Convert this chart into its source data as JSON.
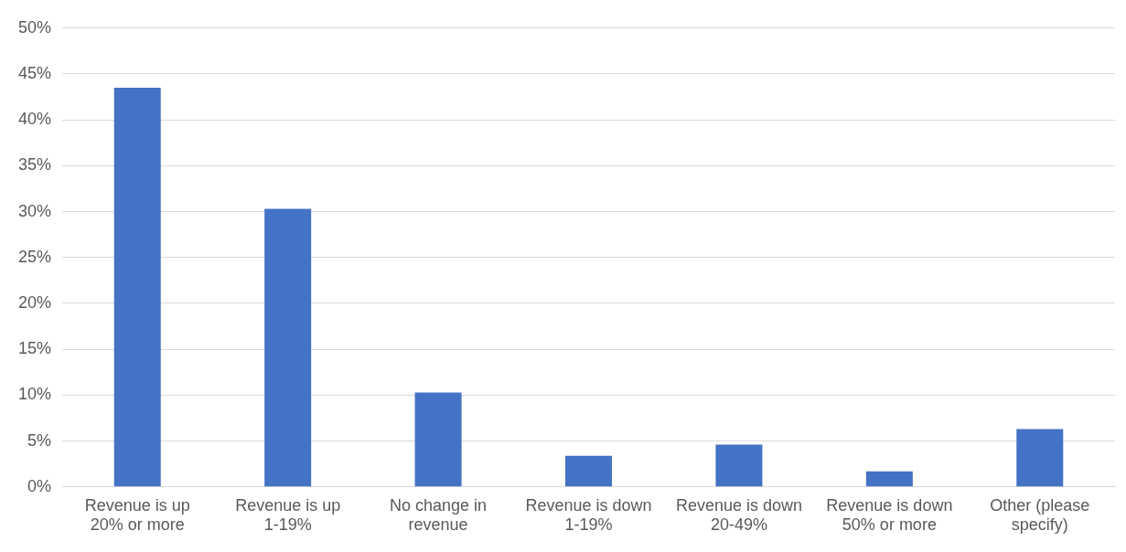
{
  "chart_data": {
    "type": "bar",
    "categories": [
      "Revenue is up 20% or more",
      "Revenue is up 1-19%",
      "No change in revenue",
      "Revenue is down 1-19%",
      "Revenue is down 20-49%",
      "Revenue is down 50% or more",
      "Other (please specify)"
    ],
    "values": [
      43.5,
      30.3,
      10.3,
      3.4,
      4.6,
      1.7,
      6.3
    ],
    "color": "#4472c4",
    "ylim": [
      0,
      50
    ],
    "yticks": [
      {
        "value": 0,
        "label": "0%"
      },
      {
        "value": 5,
        "label": "5%"
      },
      {
        "value": 10,
        "label": "10%"
      },
      {
        "value": 15,
        "label": "15%"
      },
      {
        "value": 20,
        "label": "20%"
      },
      {
        "value": 25,
        "label": "25%"
      },
      {
        "value": 30,
        "label": "30%"
      },
      {
        "value": 35,
        "label": "35%"
      },
      {
        "value": 40,
        "label": "40%"
      },
      {
        "value": 45,
        "label": "45%"
      },
      {
        "value": 50,
        "label": "50%"
      }
    ],
    "grid": "y",
    "legend": false
  }
}
